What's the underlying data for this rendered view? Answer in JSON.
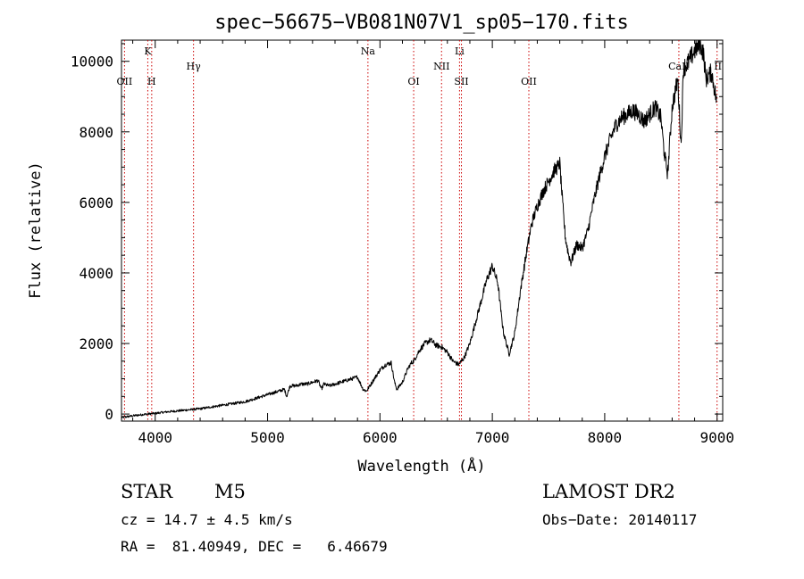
{
  "chart_data": {
    "type": "line",
    "title": "spec−56675−VB081N07V1_sp05−170.fits",
    "xlabel": "Wavelength (Å)",
    "ylabel": "Flux (relative)",
    "xlim": [
      3700,
      9050
    ],
    "ylim": [
      -200,
      10600
    ],
    "xticks": [
      4000,
      5000,
      6000,
      7000,
      8000,
      9000
    ],
    "yticks": [
      0,
      2000,
      4000,
      6000,
      8000,
      10000
    ],
    "grid": false,
    "series": [
      {
        "color": "#000000",
        "x": [
          3700,
          3800,
          3900,
          4000,
          4100,
          4200,
          4300,
          4400,
          4500,
          4600,
          4700,
          4800,
          4850,
          4900,
          4950,
          5000,
          5050,
          5100,
          5150,
          5170,
          5200,
          5250,
          5300,
          5350,
          5400,
          5450,
          5480,
          5500,
          5550,
          5600,
          5650,
          5700,
          5750,
          5800,
          5850,
          5880,
          5950,
          6000,
          6050,
          6100,
          6130,
          6150,
          6200,
          6250,
          6280,
          6300,
          6350,
          6400,
          6450,
          6500,
          6550,
          6600,
          6650,
          6700,
          6750,
          6800,
          6850,
          6900,
          6950,
          7000,
          7050,
          7080,
          7100,
          7150,
          7200,
          7250,
          7300,
          7350,
          7400,
          7450,
          7500,
          7550,
          7580,
          7600,
          7620,
          7650,
          7680,
          7700,
          7750,
          7800,
          7850,
          7900,
          7950,
          8000,
          8050,
          8100,
          8150,
          8200,
          8250,
          8300,
          8350,
          8400,
          8450,
          8500,
          8530,
          8560,
          8600,
          8650,
          8680,
          8700,
          8750,
          8800,
          8850,
          8880,
          8900,
          8950,
          9000
        ],
        "y": [
          -100,
          -50,
          -10,
          20,
          60,
          90,
          120,
          150,
          200,
          250,
          300,
          350,
          400,
          450,
          500,
          550,
          600,
          650,
          700,
          500,
          800,
          800,
          850,
          850,
          900,
          950,
          700,
          850,
          800,
          850,
          900,
          950,
          1000,
          1050,
          700,
          650,
          1000,
          1250,
          1400,
          1450,
          900,
          700,
          900,
          1300,
          1450,
          1500,
          1800,
          2000,
          2100,
          1950,
          1900,
          1750,
          1500,
          1400,
          1600,
          2000,
          2600,
          3200,
          3800,
          4200,
          3700,
          2800,
          2300,
          1700,
          2300,
          3500,
          4500,
          5400,
          5900,
          6300,
          6600,
          6900,
          7000,
          7100,
          6200,
          5000,
          4500,
          4300,
          4800,
          4700,
          5200,
          6000,
          6700,
          7300,
          7800,
          8200,
          8400,
          8500,
          8600,
          8500,
          8300,
          8500,
          8700,
          8400,
          7400,
          6800,
          8700,
          9500,
          7600,
          9800,
          10000,
          10300,
          10500,
          10200,
          9500,
          9700,
          8800
        ]
      }
    ],
    "lines": [
      {
        "label": "OII",
        "x": 3727
      },
      {
        "label": "K",
        "x": 3934
      },
      {
        "label": "H",
        "x": 3969
      },
      {
        "label": "Hγ",
        "x": 4341
      },
      {
        "label": "Na",
        "x": 5893
      },
      {
        "label": "OI",
        "x": 6300
      },
      {
        "label": "NII",
        "x": 6548
      },
      {
        "label": "Li",
        "x": 6708
      },
      {
        "label": "SII",
        "x": 6725
      },
      {
        "label": "OII",
        "x": 7325
      },
      {
        "label": "CaII",
        "x": 8660
      },
      {
        "label": "II",
        "x": 9000
      }
    ]
  },
  "info": {
    "object_class": "STAR",
    "subclass": "M5",
    "survey": "LAMOST DR2",
    "cz": "cz = 14.7 ± 4.5 km/s",
    "obs_date": "Obs−Date: 20140117",
    "coords": "RA =  81.40949, DEC =   6.46679"
  }
}
